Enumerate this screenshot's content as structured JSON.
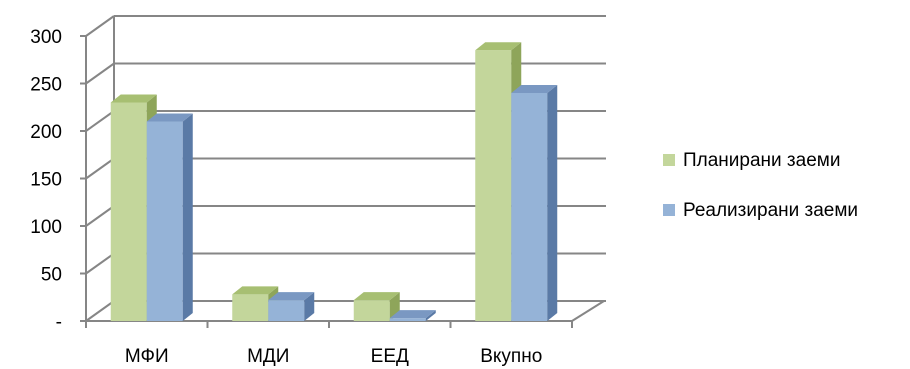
{
  "chart_data": {
    "type": "bar",
    "categories": [
      "МФИ",
      "МДИ",
      "ЕЕД",
      "Вкупно"
    ],
    "series": [
      {
        "name": "Планирани заеми",
        "values": [
          230,
          28,
          22,
          285
        ],
        "color": "#c3d69b",
        "side_color": "#8ea55a",
        "top_color": "#a7bf72"
      },
      {
        "name": "Реализирани заеми",
        "values": [
          210,
          22,
          3,
          240
        ],
        "color": "#95b3d7",
        "side_color": "#5a7aa6",
        "top_color": "#7a98c2"
      }
    ],
    "y_ticks": [
      0,
      50,
      100,
      150,
      200,
      250,
      300
    ],
    "y_tick_labels": [
      "-",
      "50",
      "100",
      "150",
      "200",
      "250",
      "300"
    ],
    "ylim": [
      0,
      300
    ],
    "grid": true,
    "legend_position": "right",
    "three_d": true
  }
}
